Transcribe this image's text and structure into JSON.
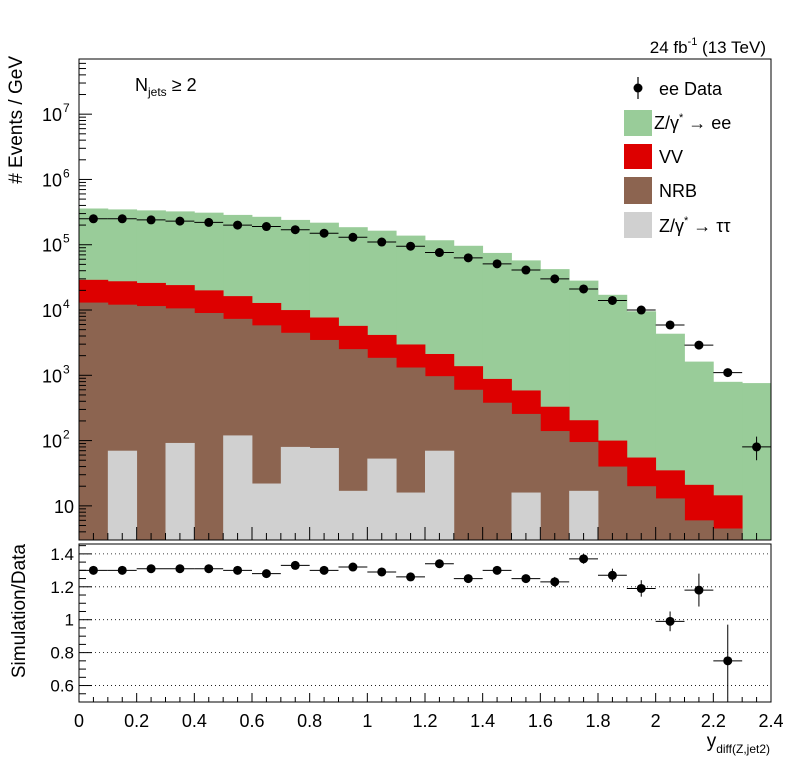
{
  "chart_data": [
    {
      "type": "bar",
      "stacked": true,
      "log_y": true,
      "ylabel": "# Events / GeV",
      "xlim": [
        0,
        2.4
      ],
      "ylim": [
        3,
        70000000
      ],
      "bin_width": 0.1,
      "lumi_label": "24 fb",
      "lumi_sup": "-1",
      "lumi_rest": " (13 TeV)",
      "njets_main": "N",
      "njets_sub": "jets",
      "njets_rest": " ≥ 2",
      "y_tick_labels": [
        {
          "value": 10,
          "main": "10",
          "exp": ""
        },
        {
          "value": 100,
          "main": "10",
          "exp": "2"
        },
        {
          "value": 1000,
          "main": "10",
          "exp": "3"
        },
        {
          "value": 10000,
          "main": "10",
          "exp": "4"
        },
        {
          "value": 100000,
          "main": "10",
          "exp": "5"
        },
        {
          "value": 1000000,
          "main": "10",
          "exp": "6"
        },
        {
          "value": 10000000,
          "main": "10",
          "exp": "7"
        }
      ],
      "legend": {
        "position": "top-right",
        "data": "ee Data",
        "zee_a": "Z/γ",
        "zee_sup": "*",
        "zee_b": " → ee",
        "vv": "VV",
        "nrb": "NRB",
        "ztt_a": "Z/γ",
        "ztt_sup": "*",
        "ztt_b": " → ττ"
      },
      "series": [
        {
          "name": "Z/γ* → ee",
          "color": "#99cc99",
          "values": [
            330000,
            320000,
            310000,
            300000,
            290000,
            270000,
            255000,
            230000,
            210000,
            180000,
            160000,
            135000,
            115000,
            95000,
            74000,
            57000,
            42000,
            28000,
            17000,
            9500,
            4300,
            1600,
            780,
            760
          ]
        },
        {
          "name": "VV",
          "color": "#dd0000",
          "values": [
            16000,
            15500,
            14500,
            13500,
            11000,
            9000,
            7000,
            5500,
            4200,
            3200,
            2300,
            1650,
            1150,
            780,
            500,
            330,
            190,
            110,
            60,
            35,
            22,
            15,
            10,
            0
          ]
        },
        {
          "name": "NRB",
          "color": "#8c6450",
          "values": [
            13000,
            12000,
            11500,
            10500,
            9000,
            7200,
            5800,
            4400,
            3400,
            2500,
            1800,
            1300,
            900,
            600,
            380,
            240,
            140,
            78,
            40,
            20,
            13,
            6,
            4.5,
            0
          ]
        },
        {
          "name": "Z/γ* → ττ",
          "color": "#d0d0d0",
          "values": [
            0,
            70,
            0,
            92,
            0,
            120,
            22,
            80,
            77,
            17,
            53,
            16,
            70,
            0,
            0,
            16,
            0,
            17,
            0,
            0,
            0,
            0,
            0,
            0
          ]
        }
      ],
      "data_points": {
        "name": "ee Data",
        "x": [
          0.05,
          0.15,
          0.25,
          0.35,
          0.45,
          0.55,
          0.65,
          0.75,
          0.85,
          0.95,
          1.05,
          1.15,
          1.25,
          1.35,
          1.45,
          1.55,
          1.65,
          1.75,
          1.85,
          1.95,
          2.05,
          2.15,
          2.25,
          2.35
        ],
        "y": [
          250000,
          250000,
          240000,
          230000,
          220000,
          200000,
          190000,
          170000,
          150000,
          130000,
          110000,
          95000,
          76000,
          63000,
          51000,
          41000,
          30000,
          21000,
          14000,
          10000,
          5900,
          2900,
          1100,
          80
        ],
        "yerr_low": [
          0,
          0,
          0,
          0,
          0,
          0,
          0,
          0,
          0,
          0,
          0,
          0,
          0,
          0,
          0,
          0,
          0,
          0,
          0,
          0,
          0,
          0,
          0,
          30
        ],
        "yerr_high": [
          0,
          0,
          0,
          0,
          0,
          0,
          0,
          0,
          0,
          0,
          0,
          0,
          0,
          0,
          0,
          0,
          0,
          0,
          0,
          0,
          0,
          0,
          0,
          35
        ]
      }
    },
    {
      "type": "scatter",
      "ylabel": "Simulation/Data",
      "xlabel_main": "y",
      "xlabel_sub": "diff(Z,jet2)",
      "xlim": [
        0,
        2.4
      ],
      "ylim": [
        0.5,
        1.46
      ],
      "x_tick_labels": [
        "0",
        "0.2",
        "0.4",
        "0.6",
        "0.8",
        "1",
        "1.2",
        "1.4",
        "1.6",
        "1.8",
        "2",
        "2.2",
        "2.4"
      ],
      "y_tick_labels": [
        "0.6",
        "0.8",
        "1",
        "1.2",
        "1.4"
      ],
      "grid_y": [
        0.6,
        0.8,
        1.0,
        1.2,
        1.4
      ],
      "x": [
        0.05,
        0.15,
        0.25,
        0.35,
        0.45,
        0.55,
        0.65,
        0.75,
        0.85,
        0.95,
        1.05,
        1.15,
        1.25,
        1.35,
        1.45,
        1.55,
        1.65,
        1.75,
        1.85,
        1.95,
        2.05,
        2.15,
        2.25
      ],
      "y": [
        1.3,
        1.3,
        1.31,
        1.31,
        1.31,
        1.3,
        1.28,
        1.33,
        1.3,
        1.32,
        1.29,
        1.26,
        1.34,
        1.25,
        1.3,
        1.25,
        1.23,
        1.37,
        1.27,
        1.19,
        0.99,
        1.18,
        0.75
      ],
      "yerr": [
        0.01,
        0.01,
        0.01,
        0.01,
        0.01,
        0.01,
        0.01,
        0.01,
        0.01,
        0.01,
        0.01,
        0.01,
        0.01,
        0.02,
        0.02,
        0.02,
        0.03,
        0.03,
        0.04,
        0.05,
        0.06,
        0.1,
        0.22
      ]
    }
  ]
}
